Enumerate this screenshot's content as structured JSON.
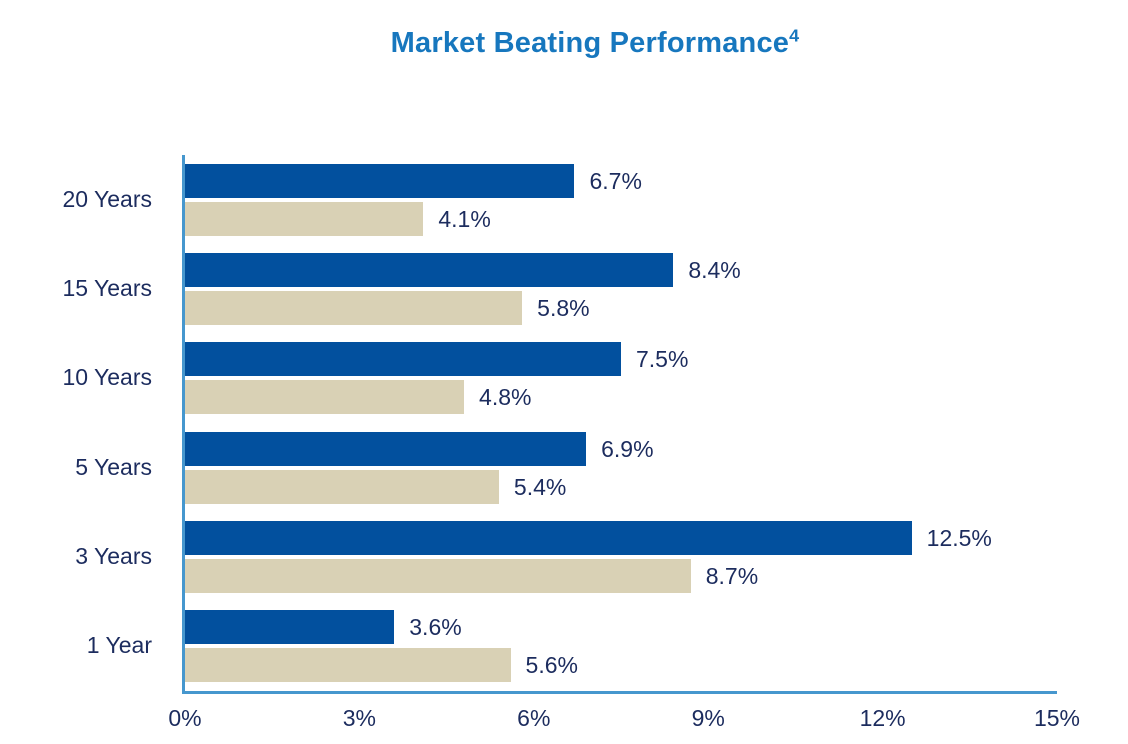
{
  "title": {
    "text": "Market Beating Performance",
    "superscript": "4"
  },
  "colors": {
    "background": "#ffffff",
    "title": "#1777be",
    "text_navy": "#1c2c5e",
    "axis": "#4697ce",
    "blue_bar": "#02509e",
    "tan_bar": "#d9d1b5"
  },
  "chart_data": {
    "type": "bar",
    "orientation": "horizontal",
    "title": "Market Beating Performance⁴",
    "categories": [
      "20 Years",
      "15 Years",
      "10 Years",
      "5 Years",
      "3 Years",
      "1 Year"
    ],
    "series": [
      {
        "name": "blue",
        "color": "#02509e",
        "values": [
          6.7,
          8.4,
          7.5,
          6.9,
          12.5,
          3.6
        ],
        "labels": [
          "6.7%",
          "8.4%",
          "7.5%",
          "6.9%",
          "12.5%",
          "3.6%"
        ]
      },
      {
        "name": "tan",
        "color": "#d9d1b5",
        "values": [
          4.1,
          5.8,
          4.8,
          5.4,
          8.7,
          5.6
        ],
        "labels": [
          "4.1%",
          "5.8%",
          "4.8%",
          "5.4%",
          "8.7%",
          "5.6%"
        ]
      }
    ],
    "x_axis": {
      "min": 0,
      "max": 15,
      "tick_values": [
        0,
        3,
        6,
        9,
        12,
        15
      ],
      "ticks": [
        "0%",
        "3%",
        "6%",
        "9%",
        "12%",
        "15%"
      ]
    },
    "xlabel": "",
    "ylabel": "",
    "legend": "none",
    "grid": false
  }
}
